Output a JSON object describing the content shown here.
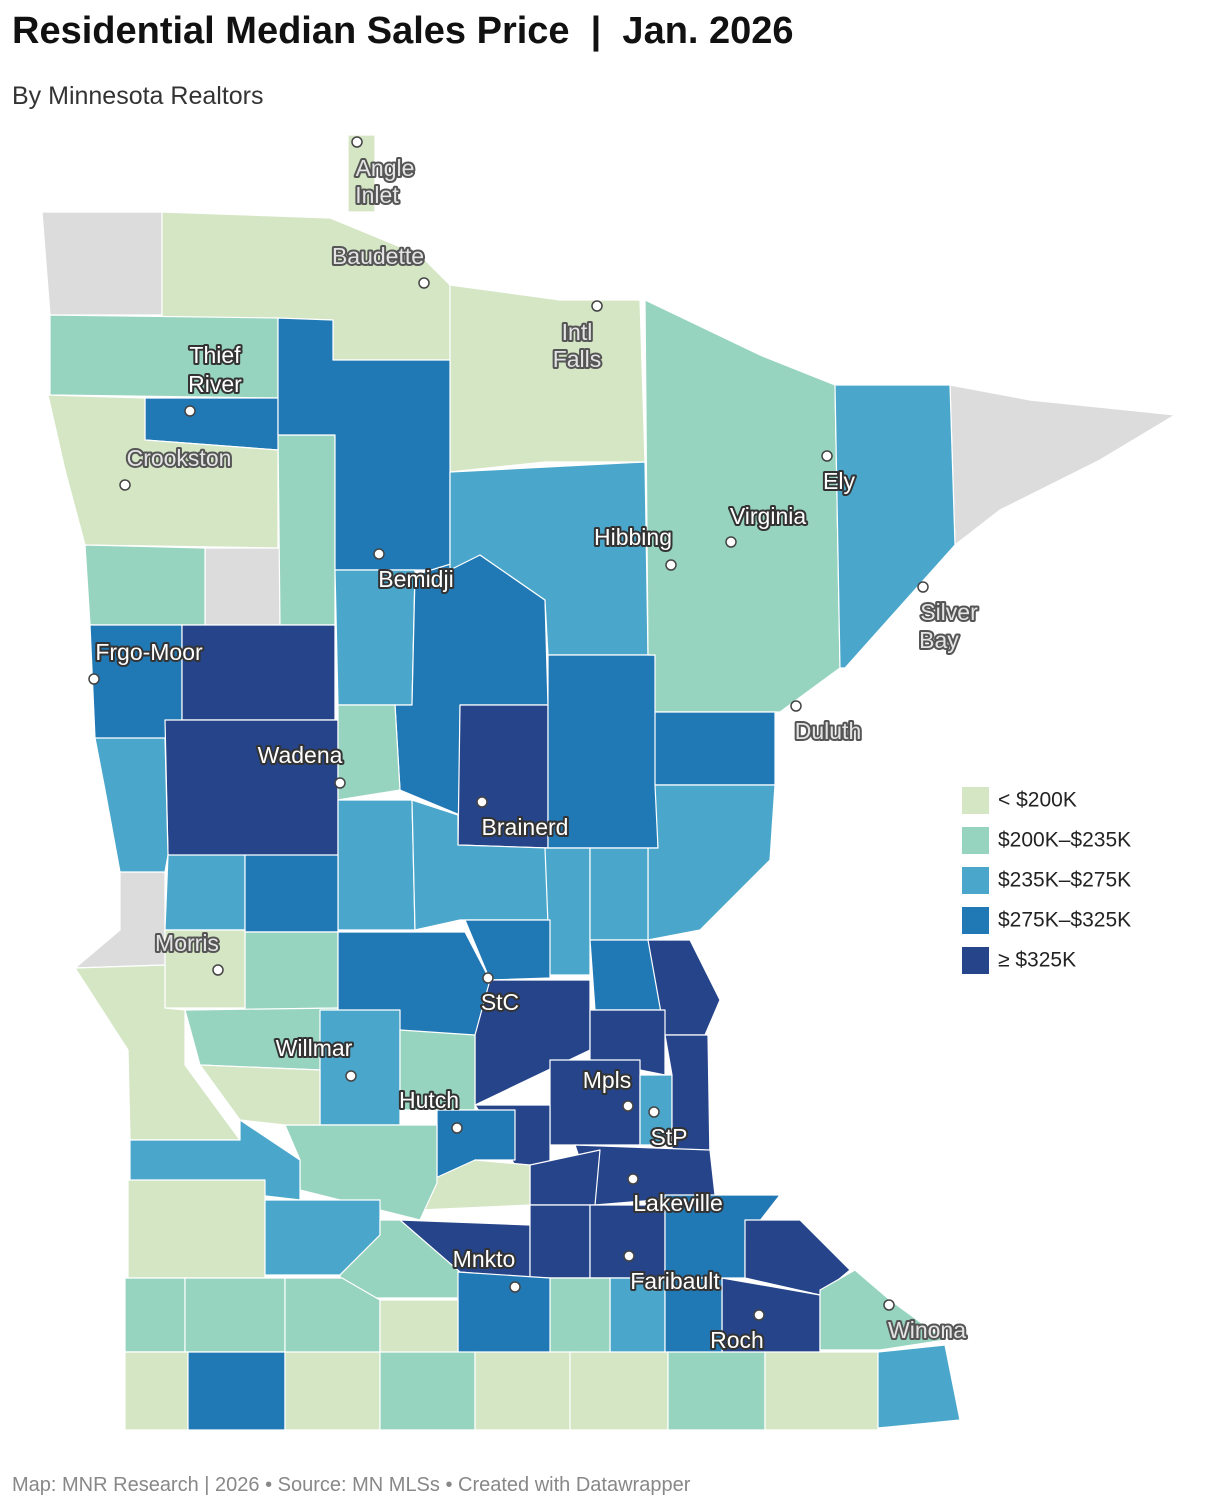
{
  "header": {
    "title": "Residential Median Sales Price  |  Jan. 2026",
    "subtitle": "By Minnesota Realtors"
  },
  "legend": [
    {
      "label": "< $200K",
      "color": "#d4e6c4"
    },
    {
      "label": "$200K–$235K",
      "color": "#97d4bf"
    },
    {
      "label": "$235K–$275K",
      "color": "#4aa7cb"
    },
    {
      "label": "$275K–$325K",
      "color": "#2078b5"
    },
    {
      "label": "≥ $325K",
      "color": "#26448a"
    }
  ],
  "cities": [
    {
      "label": [
        "Angle",
        "Inlet"
      ]
    },
    {
      "label": [
        "Baudette"
      ]
    },
    {
      "label": [
        "Intl",
        "Falls"
      ]
    },
    {
      "label": [
        "Thief",
        "River"
      ]
    },
    {
      "label": [
        "Crookston"
      ]
    },
    {
      "label": [
        "Ely"
      ]
    },
    {
      "label": [
        "Virginia"
      ]
    },
    {
      "label": [
        "Hibbing"
      ]
    },
    {
      "label": [
        "Bemidji"
      ]
    },
    {
      "label": [
        "Silver",
        "Bay"
      ]
    },
    {
      "label": [
        "Frgo-Moor"
      ]
    },
    {
      "label": [
        "Duluth"
      ]
    },
    {
      "label": [
        "Wadena"
      ]
    },
    {
      "label": [
        "Brainerd"
      ]
    },
    {
      "label": [
        "Morris"
      ]
    },
    {
      "label": [
        "StC"
      ]
    },
    {
      "label": [
        "Willmar"
      ]
    },
    {
      "label": [
        "Mpls"
      ]
    },
    {
      "label": [
        "Hutch"
      ]
    },
    {
      "label": [
        "StP"
      ]
    },
    {
      "label": [
        "Lakeville"
      ]
    },
    {
      "label": [
        "Mnkto"
      ]
    },
    {
      "label": [
        "Faribault"
      ]
    },
    {
      "label": [
        "Roch"
      ]
    },
    {
      "label": [
        "Winona"
      ]
    }
  ],
  "footer": "Map: MNR Research | 2026 • Source: MN MLSs • Created with Datawrapper"
}
